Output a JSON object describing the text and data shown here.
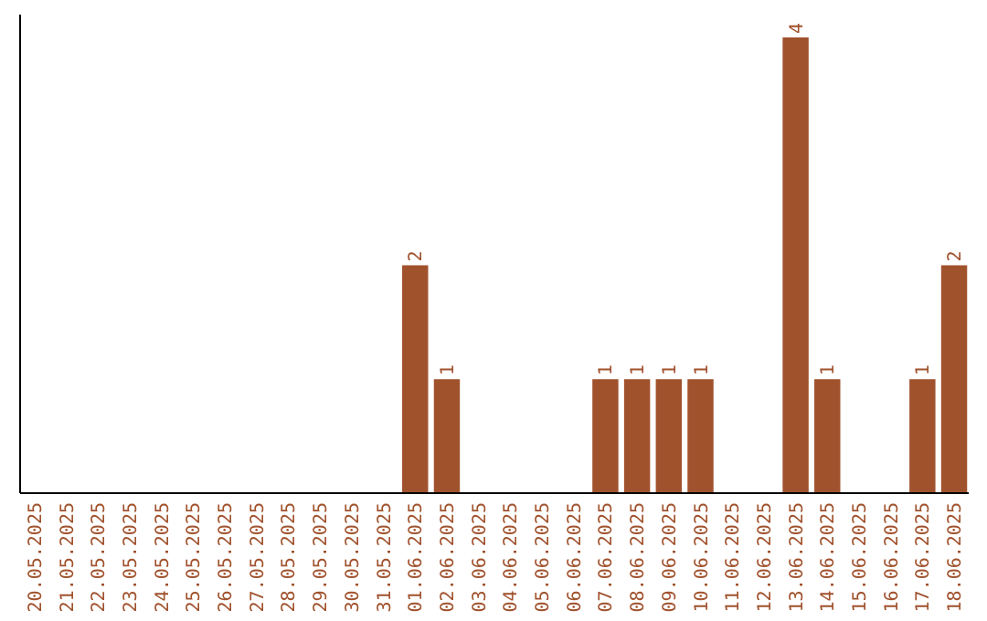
{
  "chart_data": {
    "type": "bar",
    "categories": [
      "20.05.2025",
      "21.05.2025",
      "22.05.2025",
      "23.05.2025",
      "24.05.2025",
      "25.05.2025",
      "26.05.2025",
      "27.05.2025",
      "28.05.2025",
      "29.05.2025",
      "30.05.2025",
      "31.05.2025",
      "01.06.2025",
      "02.06.2025",
      "03.06.2025",
      "04.06.2025",
      "05.06.2025",
      "06.06.2025",
      "07.06.2025",
      "08.06.2025",
      "09.06.2025",
      "10.06.2025",
      "11.06.2025",
      "12.06.2025",
      "13.06.2025",
      "14.06.2025",
      "15.06.2025",
      "16.06.2025",
      "17.06.2025",
      "18.06.2025"
    ],
    "values": [
      null,
      null,
      null,
      null,
      null,
      null,
      null,
      null,
      null,
      null,
      null,
      null,
      2,
      1,
      null,
      null,
      null,
      null,
      1,
      1,
      1,
      1,
      null,
      null,
      4,
      1,
      null,
      null,
      1,
      2
    ],
    "value_labels": [
      null,
      null,
      null,
      null,
      null,
      null,
      null,
      null,
      null,
      null,
      null,
      null,
      "2",
      "1",
      null,
      null,
      null,
      null,
      "1",
      "1",
      "1",
      "1",
      null,
      null,
      "4",
      "1",
      null,
      null,
      "1",
      "2"
    ],
    "color": "#a0522d"
  }
}
